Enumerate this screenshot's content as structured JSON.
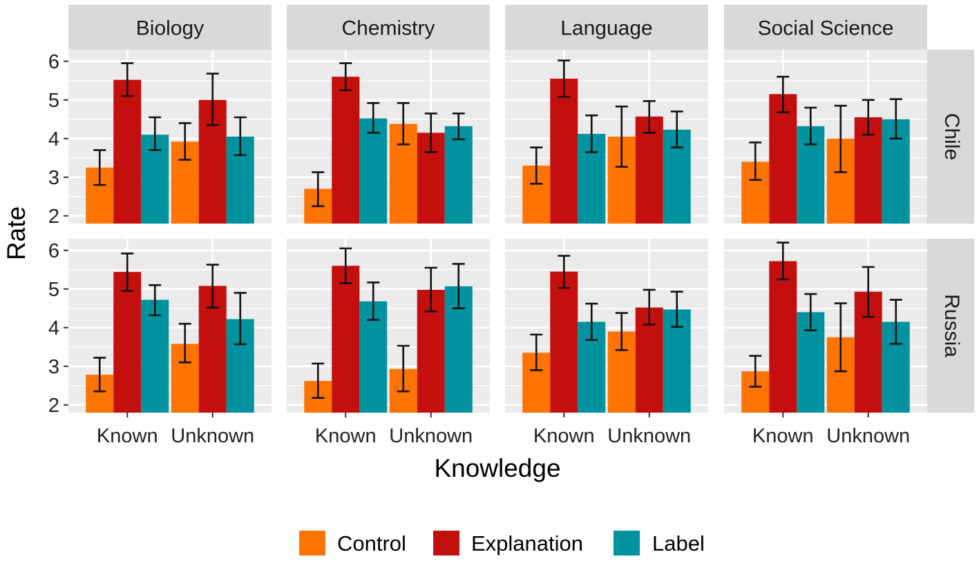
{
  "chart_data": {
    "type": "bar",
    "facet_columns": [
      "Biology",
      "Chemistry",
      "Language",
      "Social Science"
    ],
    "facet_rows": [
      "Chile",
      "Russia"
    ],
    "categories": [
      "Known",
      "Unknown"
    ],
    "series": [
      {
        "name": "Control",
        "color": "#FF7300"
      },
      {
        "name": "Explanation",
        "color": "#C30F0E"
      },
      {
        "name": "Label",
        "color": "#00929F"
      }
    ],
    "xlabel": "Knowledge",
    "ylabel": "Rate",
    "ylim": [
      1.8,
      6.3
    ],
    "y_ticks": [
      2,
      3,
      4,
      5,
      6
    ],
    "error_bars": true,
    "legend_position": "bottom",
    "panels": [
      {
        "row": "Chile",
        "column": "Biology",
        "values": {
          "Known": [
            3.25,
            5.52,
            4.1
          ],
          "Unknown": [
            3.92,
            5.0,
            4.05
          ]
        },
        "errors": {
          "Known": [
            [
              2.8,
              3.7
            ],
            [
              5.1,
              5.95
            ],
            [
              3.7,
              4.55
            ]
          ],
          "Unknown": [
            [
              3.45,
              4.4
            ],
            [
              4.35,
              5.68
            ],
            [
              3.57,
              4.55
            ]
          ]
        }
      },
      {
        "row": "Chile",
        "column": "Chemistry",
        "values": {
          "Known": [
            2.7,
            5.6,
            4.52
          ],
          "Unknown": [
            4.38,
            4.15,
            4.32
          ]
        },
        "errors": {
          "Known": [
            [
              2.25,
              3.13
            ],
            [
              5.25,
              5.95
            ],
            [
              4.15,
              4.92
            ]
          ],
          "Unknown": [
            [
              3.85,
              4.92
            ],
            [
              3.65,
              4.65
            ],
            [
              3.98,
              4.65
            ]
          ]
        }
      },
      {
        "row": "Chile",
        "column": "Language",
        "values": {
          "Known": [
            3.3,
            5.55,
            4.12
          ],
          "Unknown": [
            4.05,
            4.57,
            4.23
          ]
        },
        "errors": {
          "Known": [
            [
              2.83,
              3.77
            ],
            [
              5.08,
              6.02
            ],
            [
              3.65,
              4.6
            ]
          ],
          "Unknown": [
            [
              3.27,
              4.83
            ],
            [
              4.15,
              4.97
            ],
            [
              3.77,
              4.7
            ]
          ]
        }
      },
      {
        "row": "Chile",
        "column": "Social Science",
        "values": {
          "Known": [
            3.4,
            5.15,
            4.32
          ],
          "Unknown": [
            4.0,
            4.55,
            4.5
          ]
        },
        "errors": {
          "Known": [
            [
              2.93,
              3.9
            ],
            [
              4.68,
              5.6
            ],
            [
              3.85,
              4.8
            ]
          ],
          "Unknown": [
            [
              3.13,
              4.85
            ],
            [
              4.1,
              5.0
            ],
            [
              4.0,
              5.02
            ]
          ]
        }
      },
      {
        "row": "Russia",
        "column": "Biology",
        "values": {
          "Known": [
            2.78,
            5.44,
            4.72
          ],
          "Unknown": [
            3.58,
            5.08,
            4.22
          ]
        },
        "errors": {
          "Known": [
            [
              2.35,
              3.22
            ],
            [
              4.95,
              5.92
            ],
            [
              4.32,
              5.1
            ]
          ],
          "Unknown": [
            [
              3.1,
              4.1
            ],
            [
              4.52,
              5.63
            ],
            [
              3.57,
              4.9
            ]
          ]
        }
      },
      {
        "row": "Russia",
        "column": "Chemistry",
        "values": {
          "Known": [
            2.62,
            5.6,
            4.68
          ],
          "Unknown": [
            2.93,
            4.98,
            5.07
          ]
        },
        "errors": {
          "Known": [
            [
              2.18,
              3.07
            ],
            [
              5.15,
              6.05
            ],
            [
              4.2,
              5.17
            ]
          ],
          "Unknown": [
            [
              2.35,
              3.53
            ],
            [
              4.42,
              5.55
            ],
            [
              4.5,
              5.65
            ]
          ]
        }
      },
      {
        "row": "Russia",
        "column": "Language",
        "values": {
          "Known": [
            3.35,
            5.45,
            4.15
          ],
          "Unknown": [
            3.9,
            4.52,
            4.47
          ]
        },
        "errors": {
          "Known": [
            [
              2.9,
              3.82
            ],
            [
              5.03,
              5.86
            ],
            [
              3.68,
              4.62
            ]
          ],
          "Unknown": [
            [
              3.42,
              4.38
            ],
            [
              4.08,
              4.98
            ],
            [
              4.02,
              4.93
            ]
          ]
        }
      },
      {
        "row": "Russia",
        "column": "Social Science",
        "values": {
          "Known": [
            2.87,
            5.72,
            4.4
          ],
          "Unknown": [
            3.75,
            4.93,
            4.15
          ]
        },
        "errors": {
          "Known": [
            [
              2.47,
              3.27
            ],
            [
              5.25,
              6.2
            ],
            [
              3.93,
              4.87
            ]
          ],
          "Unknown": [
            [
              2.87,
              4.63
            ],
            [
              4.28,
              5.57
            ],
            [
              3.58,
              4.72
            ]
          ]
        }
      }
    ]
  }
}
